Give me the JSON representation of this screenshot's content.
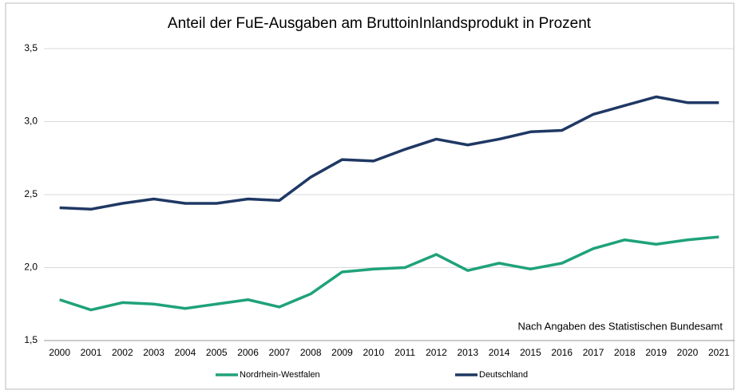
{
  "chart_data": {
    "type": "line",
    "title": "Anteil der FuE-Ausgaben am BruttoinInlandsprodukt in Prozent",
    "annotation": "Nach Angaben des Statistischen Bundesamt",
    "categories": [
      "2000",
      "2001",
      "2002",
      "2003",
      "2004",
      "2005",
      "2006",
      "2007",
      "2008",
      "2009",
      "2010",
      "2011",
      "2012",
      "2013",
      "2014",
      "2015",
      "2016",
      "2017",
      "2018",
      "2019",
      "2020",
      "2021"
    ],
    "series": [
      {
        "name": "Nordrhein-Westfalen",
        "color": "#1fa27a",
        "values": [
          1.78,
          1.71,
          1.76,
          1.75,
          1.72,
          1.75,
          1.78,
          1.73,
          1.82,
          1.97,
          1.99,
          2.0,
          2.09,
          1.98,
          2.03,
          1.99,
          2.03,
          2.13,
          2.19,
          2.16,
          2.19,
          2.21
        ]
      },
      {
        "name": "Deutschland",
        "color": "#1f3864",
        "values": [
          2.41,
          2.4,
          2.44,
          2.47,
          2.44,
          2.44,
          2.47,
          2.46,
          2.62,
          2.74,
          2.73,
          2.81,
          2.88,
          2.84,
          2.88,
          2.93,
          2.94,
          3.05,
          3.11,
          3.17,
          3.13,
          3.13
        ]
      }
    ],
    "ylim": [
      1.5,
      3.5
    ],
    "yticks": [
      {
        "value": 1.5,
        "label": "1,5"
      },
      {
        "value": 2.0,
        "label": "2,0"
      },
      {
        "value": 2.5,
        "label": "2,5"
      },
      {
        "value": 3.0,
        "label": "3,0"
      },
      {
        "value": 3.5,
        "label": "3,5"
      }
    ],
    "grid": true
  }
}
